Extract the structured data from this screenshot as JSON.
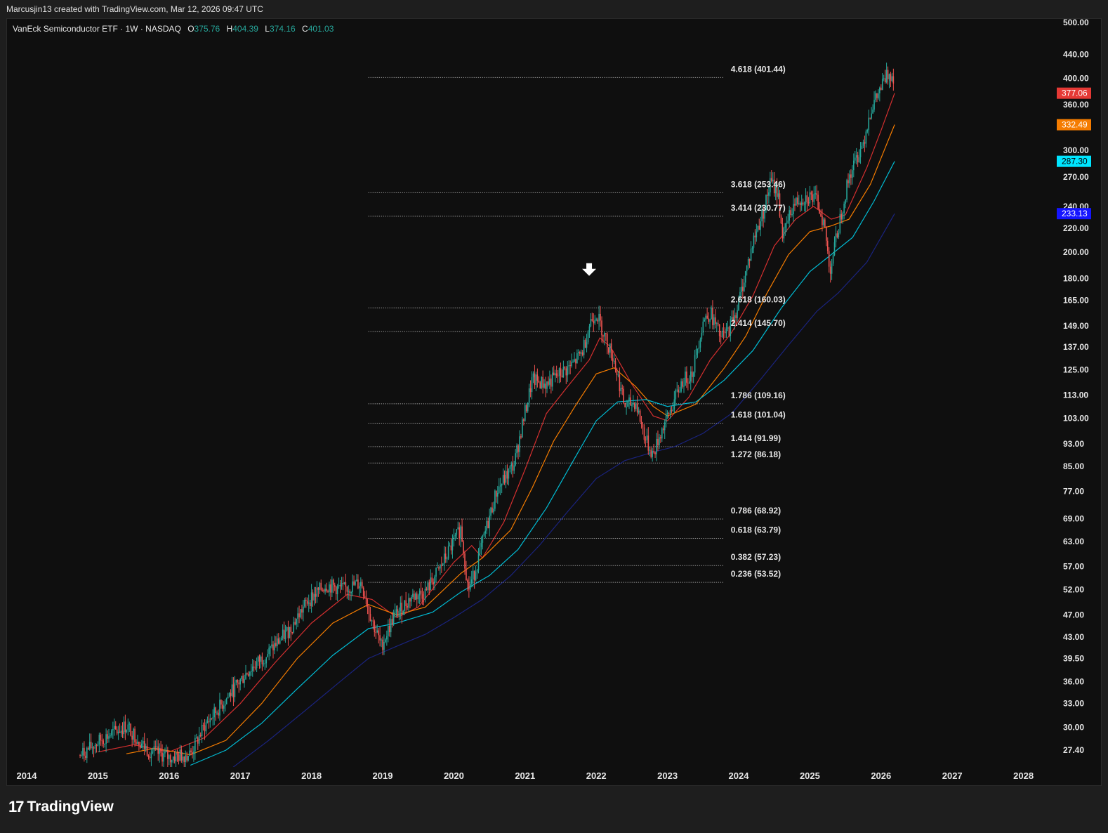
{
  "header": {
    "attribution": "Marcusjin13 created with TradingView.com, Mar 12, 2026 09:47 UTC"
  },
  "legend": {
    "symbol": "VanEck Semiconductor ETF · 1W · NASDAQ",
    "o_label": "O",
    "o_value": "375.76",
    "h_label": "H",
    "h_value": "404.39",
    "l_label": "L",
    "l_value": "374.16",
    "c_label": "C",
    "c_value": "401.03"
  },
  "brand": {
    "logo_text": "17",
    "name": "TradingView"
  },
  "colors": {
    "background": "#0f0f0f",
    "up": "#26a69a",
    "down": "#ef5350",
    "ma_red": "#d32f2f",
    "ma_orange": "#f57c00",
    "ma_cyan": "#00bcd4",
    "ma_blue": "#1a237e"
  },
  "chart_data": {
    "type": "candlestick",
    "scale": "log",
    "interval": "1W",
    "x_ticks": [
      "2014",
      "2015",
      "2016",
      "2017",
      "2018",
      "2019",
      "2020",
      "2021",
      "2022",
      "2023",
      "2024",
      "2025",
      "2026",
      "2027",
      "2028"
    ],
    "y_ticks": [
      "500.00",
      "440.00",
      "400.00",
      "360.00",
      "300.00",
      "270.00",
      "240.00",
      "220.00",
      "200.00",
      "180.00",
      "165.00",
      "149.00",
      "137.00",
      "125.00",
      "113.00",
      "103.00",
      "93.00",
      "85.00",
      "77.00",
      "69.00",
      "63.00",
      "57.00",
      "52.00",
      "47.00",
      "43.00",
      "39.50",
      "36.00",
      "33.00",
      "30.00",
      "27.40"
    ],
    "ylim": [
      25.5,
      505
    ],
    "price_path": [
      [
        2014.75,
        26.8
      ],
      [
        2015.05,
        28.6
      ],
      [
        2015.4,
        30.2
      ],
      [
        2015.7,
        27.4
      ],
      [
        2016.0,
        26.6
      ],
      [
        2016.3,
        27.0
      ],
      [
        2016.5,
        30.2
      ],
      [
        2016.8,
        33.6
      ],
      [
        2017.1,
        37.5
      ],
      [
        2017.4,
        40.5
      ],
      [
        2017.7,
        44.5
      ],
      [
        2017.95,
        49.8
      ],
      [
        2018.2,
        53.0
      ],
      [
        2018.45,
        52.0
      ],
      [
        2018.7,
        53.5
      ],
      [
        2018.85,
        46.0
      ],
      [
        2018.98,
        41.5
      ],
      [
        2019.15,
        46.5
      ],
      [
        2019.4,
        50.5
      ],
      [
        2019.6,
        51.5
      ],
      [
        2019.8,
        56.5
      ],
      [
        2019.97,
        62.0
      ],
      [
        2020.1,
        66.5
      ],
      [
        2020.2,
        52.0
      ],
      [
        2020.28,
        55.0
      ],
      [
        2020.45,
        66.0
      ],
      [
        2020.6,
        77.0
      ],
      [
        2020.85,
        86.0
      ],
      [
        2020.95,
        99.0
      ],
      [
        2021.1,
        120.0
      ],
      [
        2021.3,
        118.0
      ],
      [
        2021.45,
        122.0
      ],
      [
        2021.65,
        127.0
      ],
      [
        2021.8,
        134.0
      ],
      [
        2021.92,
        152.0
      ],
      [
        2022.0,
        157.0
      ],
      [
        2022.1,
        145.0
      ],
      [
        2022.25,
        130.0
      ],
      [
        2022.4,
        108.0
      ],
      [
        2022.55,
        110.0
      ],
      [
        2022.7,
        94.0
      ],
      [
        2022.8,
        89.0
      ],
      [
        2022.9,
        97.0
      ],
      [
        2023.05,
        107.0
      ],
      [
        2023.2,
        119.0
      ],
      [
        2023.35,
        124.0
      ],
      [
        2023.5,
        152.0
      ],
      [
        2023.6,
        157.0
      ],
      [
        2023.75,
        142.0
      ],
      [
        2023.85,
        146.0
      ],
      [
        2023.98,
        160.0
      ],
      [
        2024.1,
        185.0
      ],
      [
        2024.22,
        212.0
      ],
      [
        2024.35,
        236.0
      ],
      [
        2024.45,
        265.0
      ],
      [
        2024.55,
        253.0
      ],
      [
        2024.62,
        212.0
      ],
      [
        2024.75,
        239.0
      ],
      [
        2024.85,
        247.0
      ],
      [
        2025.0,
        250.0
      ],
      [
        2025.1,
        245.0
      ],
      [
        2025.2,
        224.0
      ],
      [
        2025.28,
        186.0
      ],
      [
        2025.35,
        205.0
      ],
      [
        2025.45,
        237.0
      ],
      [
        2025.55,
        270.0
      ],
      [
        2025.65,
        290.0
      ],
      [
        2025.75,
        310.0
      ],
      [
        2025.85,
        352.0
      ],
      [
        2025.95,
        373.0
      ],
      [
        2026.05,
        398.0
      ],
      [
        2026.12,
        410.0
      ],
      [
        2026.19,
        401.0
      ]
    ],
    "moving_averages": [
      {
        "color": "#d32f2f",
        "points": [
          [
            2015.0,
            27.2
          ],
          [
            2015.5,
            28.0
          ],
          [
            2016.0,
            27.2
          ],
          [
            2016.5,
            28.8
          ],
          [
            2017.0,
            33.0
          ],
          [
            2017.5,
            39.0
          ],
          [
            2018.0,
            45.5
          ],
          [
            2018.5,
            51.0
          ],
          [
            2018.85,
            50.0
          ],
          [
            2019.2,
            46.5
          ],
          [
            2019.5,
            48.5
          ],
          [
            2020.0,
            58.0
          ],
          [
            2020.25,
            62.0
          ],
          [
            2020.4,
            59.0
          ],
          [
            2020.7,
            68.0
          ],
          [
            2021.0,
            84.0
          ],
          [
            2021.3,
            105.0
          ],
          [
            2021.6,
            117.0
          ],
          [
            2021.9,
            130.0
          ],
          [
            2022.05,
            142.0
          ],
          [
            2022.2,
            137.0
          ],
          [
            2022.5,
            118.0
          ],
          [
            2022.8,
            104.0
          ],
          [
            2023.0,
            102.0
          ],
          [
            2023.3,
            112.0
          ],
          [
            2023.6,
            130.0
          ],
          [
            2023.9,
            145.0
          ],
          [
            2024.2,
            168.0
          ],
          [
            2024.5,
            205.0
          ],
          [
            2024.8,
            228.0
          ],
          [
            2025.05,
            240.0
          ],
          [
            2025.3,
            228.0
          ],
          [
            2025.5,
            232.0
          ],
          [
            2025.8,
            280.0
          ],
          [
            2026.0,
            325.0
          ],
          [
            2026.19,
            377.06
          ]
        ]
      },
      {
        "color": "#f57c00",
        "points": [
          [
            2015.4,
            27.0
          ],
          [
            2015.8,
            27.6
          ],
          [
            2016.3,
            26.9
          ],
          [
            2016.8,
            28.5
          ],
          [
            2017.3,
            33.0
          ],
          [
            2017.8,
            39.5
          ],
          [
            2018.3,
            45.5
          ],
          [
            2018.8,
            49.0
          ],
          [
            2019.2,
            47.0
          ],
          [
            2019.6,
            48.5
          ],
          [
            2020.1,
            55.5
          ],
          [
            2020.4,
            59.0
          ],
          [
            2020.8,
            66.0
          ],
          [
            2021.1,
            78.0
          ],
          [
            2021.4,
            94.0
          ],
          [
            2021.7,
            108.0
          ],
          [
            2022.0,
            123.0
          ],
          [
            2022.25,
            126.0
          ],
          [
            2022.55,
            117.0
          ],
          [
            2022.8,
            108.0
          ],
          [
            2023.0,
            104.0
          ],
          [
            2023.4,
            109.0
          ],
          [
            2023.8,
            126.0
          ],
          [
            2024.1,
            143.0
          ],
          [
            2024.4,
            170.0
          ],
          [
            2024.7,
            198.0
          ],
          [
            2025.0,
            217.0
          ],
          [
            2025.3,
            222.0
          ],
          [
            2025.55,
            228.0
          ],
          [
            2025.85,
            262.0
          ],
          [
            2026.19,
            332.49
          ]
        ]
      },
      {
        "color": "#00bcd4",
        "points": [
          [
            2016.3,
            25.8
          ],
          [
            2016.8,
            27.4
          ],
          [
            2017.3,
            30.5
          ],
          [
            2017.8,
            35.0
          ],
          [
            2018.3,
            40.0
          ],
          [
            2018.8,
            44.5
          ],
          [
            2019.2,
            45.5
          ],
          [
            2019.7,
            47.5
          ],
          [
            2020.1,
            51.5
          ],
          [
            2020.5,
            55.0
          ],
          [
            2020.9,
            61.0
          ],
          [
            2021.3,
            72.0
          ],
          [
            2021.7,
            88.0
          ],
          [
            2022.0,
            102.0
          ],
          [
            2022.3,
            110.0
          ],
          [
            2022.7,
            111.0
          ],
          [
            2023.0,
            108.0
          ],
          [
            2023.4,
            110.0
          ],
          [
            2023.8,
            120.0
          ],
          [
            2024.2,
            135.0
          ],
          [
            2024.6,
            160.0
          ],
          [
            2025.0,
            185.0
          ],
          [
            2025.3,
            198.0
          ],
          [
            2025.6,
            212.0
          ],
          [
            2025.9,
            245.0
          ],
          [
            2026.19,
            287.3
          ]
        ]
      },
      {
        "color": "#1a237e",
        "points": [
          [
            2016.9,
            25.6
          ],
          [
            2017.4,
            28.5
          ],
          [
            2017.9,
            32.0
          ],
          [
            2018.4,
            36.0
          ],
          [
            2018.8,
            39.5
          ],
          [
            2019.2,
            41.5
          ],
          [
            2019.6,
            43.5
          ],
          [
            2020.0,
            46.5
          ],
          [
            2020.4,
            50.0
          ],
          [
            2020.8,
            55.0
          ],
          [
            2021.2,
            62.0
          ],
          [
            2021.6,
            71.0
          ],
          [
            2022.0,
            81.0
          ],
          [
            2022.4,
            87.0
          ],
          [
            2022.8,
            90.0
          ],
          [
            2023.1,
            92.0
          ],
          [
            2023.5,
            97.0
          ],
          [
            2023.9,
            105.0
          ],
          [
            2024.3,
            120.0
          ],
          [
            2024.7,
            138.0
          ],
          [
            2025.1,
            158.0
          ],
          [
            2025.4,
            170.0
          ],
          [
            2025.8,
            192.0
          ],
          [
            2026.19,
            233.13
          ]
        ]
      }
    ],
    "fib_levels": [
      {
        "ratio": "4.618",
        "value": 401.44,
        "label": "4.618 (401.44)"
      },
      {
        "ratio": "3.618",
        "value": 253.46,
        "label": "3.618 (253.46)"
      },
      {
        "ratio": "3.414",
        "value": 230.77,
        "label": "3.414 (230.77)"
      },
      {
        "ratio": "2.618",
        "value": 160.03,
        "label": "2.618 (160.03)"
      },
      {
        "ratio": "2.414",
        "value": 145.7,
        "label": "2.414 (145.70)"
      },
      {
        "ratio": "1.786",
        "value": 109.16,
        "label": "1.786 (109.16)"
      },
      {
        "ratio": "1.618",
        "value": 101.04,
        "label": "1.618 (101.04)"
      },
      {
        "ratio": "1.414",
        "value": 91.99,
        "label": "1.414 (91.99)"
      },
      {
        "ratio": "1.272",
        "value": 86.18,
        "label": "1.272 (86.18)"
      },
      {
        "ratio": "0.786",
        "value": 68.92,
        "label": "0.786 (68.92)"
      },
      {
        "ratio": "0.618",
        "value": 63.79,
        "label": "0.618 (63.79)"
      },
      {
        "ratio": "0.382",
        "value": 57.23,
        "label": "0.382 (57.23)"
      },
      {
        "ratio": "0.236",
        "value": 53.52,
        "label": "0.236 (53.52)"
      }
    ],
    "fib_start_year": 2018.8,
    "fib_end_year": 2023.8,
    "price_tags": [
      {
        "value": 377.06,
        "label": "377.06",
        "color": "#e53935",
        "text_color": "#ffffff"
      },
      {
        "value": 332.49,
        "label": "332.49",
        "color": "#f57c00",
        "text_color": "#ffffff"
      },
      {
        "value": 287.3,
        "label": "287.30",
        "color": "#00e5ff",
        "text_color": "#000000"
      },
      {
        "value": 233.13,
        "label": "233.13",
        "color": "#1515ff",
        "text_color": "#ffffff"
      }
    ],
    "annotation": {
      "type": "down-arrow",
      "x_year": 2021.9,
      "value": 185
    }
  }
}
